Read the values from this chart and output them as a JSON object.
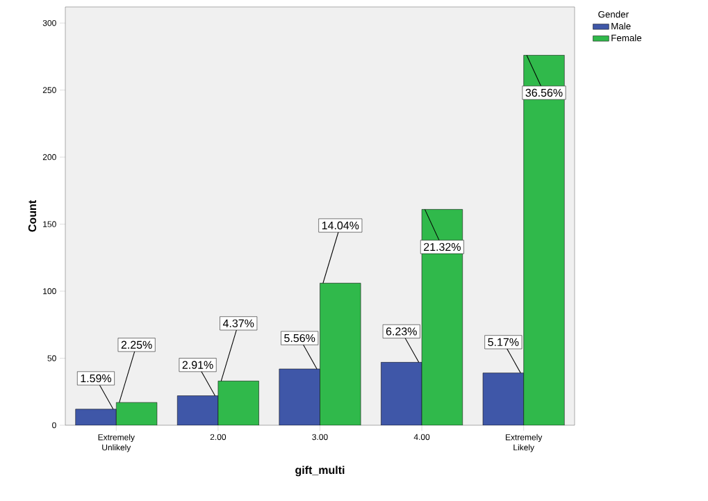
{
  "chart_data": {
    "type": "bar",
    "xlabel": "gift_multi",
    "ylabel": "Count",
    "legend_title": "Gender",
    "categories": [
      "Extremely Unlikely",
      "2.00",
      "3.00",
      "4.00",
      "Extremely Likely"
    ],
    "series": [
      {
        "name": "Male",
        "color": "#3f57a8",
        "values": [
          12,
          22,
          42,
          47,
          39
        ]
      },
      {
        "name": "Female",
        "color": "#30b94b",
        "values": [
          17,
          33,
          106,
          161,
          276
        ]
      }
    ],
    "annotations": [
      {
        "text": "1.59%",
        "x": "Extremely Unlikely",
        "y": 12
      },
      {
        "text": "2.25%",
        "x": "Extremely Unlikely",
        "y": 17
      },
      {
        "text": "2.91%",
        "x": "2.00",
        "y": 22
      },
      {
        "text": "4.37%",
        "x": "2.00",
        "y": 33
      },
      {
        "text": "5.56%",
        "x": "3.00",
        "y": 42
      },
      {
        "text": "14.04%",
        "x": "3.00",
        "y": 106
      },
      {
        "text": "6.23%",
        "x": "4.00",
        "y": 47
      },
      {
        "text": "21.32%",
        "x": "4.00",
        "y": 161
      },
      {
        "text": "5.17%",
        "x": "Extremely Likely",
        "y": 39
      },
      {
        "text": "36.56%",
        "x": "Extremely Likely",
        "y": 276
      }
    ],
    "ylim": [
      0,
      312
    ],
    "yticks": [
      0,
      50,
      100,
      150,
      200,
      250,
      300
    ],
    "legend": "top right",
    "grid": false
  }
}
